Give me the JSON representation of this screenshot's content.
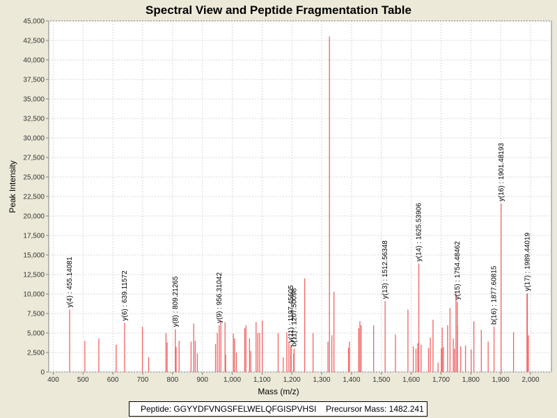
{
  "chart_data": {
    "type": "bar",
    "title": "Spectral View and Peptide Fragmentation Table",
    "xlabel": "Mass (m/z)",
    "ylabel": "Peak Intensity",
    "xlim": [
      385,
      2070
    ],
    "ylim": [
      0,
      45000
    ],
    "grid": true,
    "colors": {
      "peak": "#f06262",
      "plot_bg": "#ffffff",
      "grid": "#d7d7d7",
      "page_bg": "#ece9d8"
    },
    "x_ticks": [
      400,
      500,
      600,
      700,
      800,
      900,
      1000,
      1100,
      1200,
      1300,
      1400,
      1500,
      1600,
      1700,
      1800,
      1900,
      2000
    ],
    "x_tick_labels": [
      "400",
      "500",
      "600",
      "700",
      "800",
      "900",
      "1,000",
      "1,100",
      "1,200",
      "1,300",
      "1,400",
      "1,500",
      "1,600",
      "1,700",
      "1,800",
      "1,900",
      "2,000"
    ],
    "y_ticks": [
      0,
      2500,
      5000,
      7500,
      10000,
      12500,
      15000,
      17500,
      20000,
      22500,
      25000,
      27500,
      30000,
      32500,
      35000,
      37500,
      40000,
      42500,
      45000
    ],
    "y_tick_labels": [
      "0",
      "2,500",
      "5,000",
      "7,500",
      "10,000",
      "12,500",
      "15,000",
      "17,500",
      "20,000",
      "22,500",
      "25,000",
      "27,500",
      "30,000",
      "32,500",
      "35,000",
      "37,500",
      "40,000",
      "42,500",
      "45,000"
    ],
    "peaks": [
      [
        455.14,
        8000
      ],
      [
        506,
        4000
      ],
      [
        553,
        4300
      ],
      [
        611,
        3500
      ],
      [
        639.12,
        6300
      ],
      [
        699,
        5800
      ],
      [
        720,
        1900
      ],
      [
        778,
        5000
      ],
      [
        782,
        3800
      ],
      [
        809.21,
        5500
      ],
      [
        812,
        3200
      ],
      [
        822,
        4000
      ],
      [
        862,
        3900
      ],
      [
        871,
        6200
      ],
      [
        876,
        4000
      ],
      [
        883,
        2400
      ],
      [
        944,
        3600
      ],
      [
        950,
        5000
      ],
      [
        956.31,
        6000
      ],
      [
        962,
        6500
      ],
      [
        976,
        6400
      ],
      [
        978,
        2200
      ],
      [
        1004,
        4900
      ],
      [
        1008,
        4300
      ],
      [
        1014,
        2500
      ],
      [
        1042,
        5600
      ],
      [
        1046,
        6000
      ],
      [
        1058,
        4300
      ],
      [
        1062,
        2700
      ],
      [
        1080,
        6400
      ],
      [
        1086,
        5000
      ],
      [
        1092,
        5000
      ],
      [
        1101,
        6600
      ],
      [
        1154,
        5000
      ],
      [
        1171,
        1900
      ],
      [
        1183,
        5100
      ],
      [
        1190,
        3900
      ],
      [
        1196,
        3300
      ],
      [
        1197.46,
        3500
      ],
      [
        1206,
        2400
      ],
      [
        1207.5,
        3000
      ],
      [
        1243,
        12000
      ],
      [
        1271,
        5000
      ],
      [
        1321,
        3900
      ],
      [
        1326,
        43000
      ],
      [
        1334,
        4700
      ],
      [
        1341,
        10300
      ],
      [
        1390,
        3100
      ],
      [
        1393,
        3900
      ],
      [
        1424,
        5600
      ],
      [
        1428,
        6500
      ],
      [
        1432,
        6000
      ],
      [
        1474,
        6000
      ],
      [
        1512.56,
        9100
      ],
      [
        1547,
        4800
      ],
      [
        1589,
        8000
      ],
      [
        1607,
        3300
      ],
      [
        1616,
        3000
      ],
      [
        1622,
        3700
      ],
      [
        1625.54,
        13900
      ],
      [
        1633,
        3500
      ],
      [
        1658,
        3100
      ],
      [
        1664,
        4400
      ],
      [
        1673,
        6700
      ],
      [
        1690,
        1200
      ],
      [
        1701,
        3000
      ],
      [
        1704,
        5700
      ],
      [
        1708,
        3200
      ],
      [
        1722,
        6000
      ],
      [
        1730,
        8200
      ],
      [
        1741,
        4300
      ],
      [
        1745,
        3000
      ],
      [
        1750,
        10200
      ],
      [
        1754.48,
        9000
      ],
      [
        1755,
        6000
      ],
      [
        1766,
        3300
      ],
      [
        1782,
        3400
      ],
      [
        1801,
        2900
      ],
      [
        1810,
        6500
      ],
      [
        1835,
        5400
      ],
      [
        1858,
        3900
      ],
      [
        1877.61,
        5800
      ],
      [
        1901.48,
        21600
      ],
      [
        1943,
        5100
      ],
      [
        1988,
        10000
      ],
      [
        1989.44,
        10100
      ],
      [
        1993,
        4700
      ]
    ],
    "annotations": [
      {
        "mz": 455.14081,
        "text": "y(4) : 455.14081"
      },
      {
        "mz": 639.11572,
        "text": "y(6) : 639.11572"
      },
      {
        "mz": 809.21265,
        "text": "y(8) : 809.21265"
      },
      {
        "mz": 956.31042,
        "text": "y(9) : 956.31042"
      },
      {
        "mz": 1197.45605,
        "text": "y(11) : 1197.45605"
      },
      {
        "mz": 1207.50098,
        "text": "b(11) : 1207.50098"
      },
      {
        "mz": 1512.56348,
        "text": "y(13) : 1512.56348"
      },
      {
        "mz": 1625.53906,
        "text": "y(14) : 1625.53906"
      },
      {
        "mz": 1754.48462,
        "text": "y(15) : 1754.48462"
      },
      {
        "mz": 1877.60815,
        "text": "b(16) : 1877.60815"
      },
      {
        "mz": 1901.48193,
        "text": "y(16) : 1901.48193"
      },
      {
        "mz": 1989.44019,
        "text": "y(17) : 1989.44019"
      }
    ]
  },
  "legend": {
    "peptide_label": "Peptide: GGYYDFVNGSFELWELQFGISPVHSI",
    "precursor_label": "Precursor Mass: 1482.241"
  }
}
